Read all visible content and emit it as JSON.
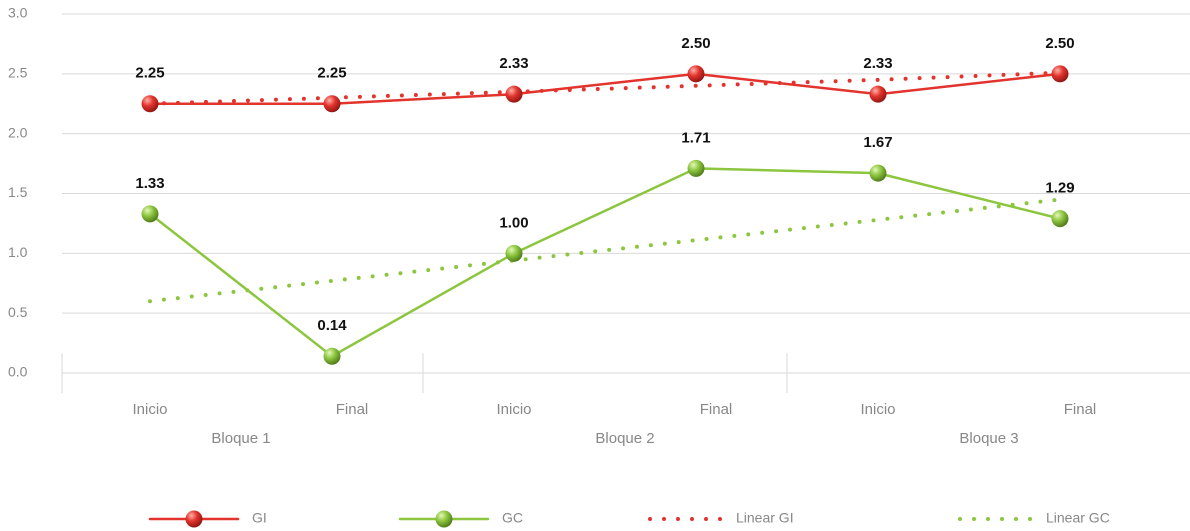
{
  "chart_data": {
    "type": "line",
    "categories": [
      "Inicio",
      "Final",
      "Inicio",
      "Final",
      "Inicio",
      "Final"
    ],
    "groups": [
      "Bloque 1",
      "Bloque 2",
      "Bloque 3"
    ],
    "ylim": [
      0,
      3
    ],
    "yticks": [
      {
        "value": 0,
        "label": "0.0"
      },
      0.5,
      {
        "value": 1,
        "label": "1.0"
      },
      1.5,
      {
        "value": 2,
        "label": "2.0"
      },
      2.5,
      {
        "value": 3,
        "label": "3.0"
      }
    ],
    "grid": true,
    "legend": "bottom",
    "series": [
      {
        "name": "GI",
        "color": "#e2332d",
        "style": "solid",
        "markers": true,
        "values": [
          2.25,
          2.25,
          2.33,
          2.5,
          2.33,
          2.5
        ],
        "value_labels": [
          "2.25",
          "2.25",
          "2.33",
          "2.50",
          "2.33",
          "2.50"
        ]
      },
      {
        "name": "GC",
        "color": "#8cc63f",
        "style": "solid",
        "markers": true,
        "values": [
          1.33,
          0.14,
          1.0,
          1.71,
          1.67,
          1.29
        ],
        "value_labels": [
          "1.33",
          "0.14",
          "1.00",
          "1.71",
          "1.67",
          "1.29"
        ]
      },
      {
        "name": "Linear GI",
        "color": "#e2332d",
        "style": "dotted",
        "markers": false,
        "values": [
          2.25,
          2.3,
          2.35,
          2.4,
          2.45,
          2.51
        ]
      },
      {
        "name": "Linear GC",
        "color": "#8cc63f",
        "style": "dotted",
        "markers": false,
        "values": [
          0.6,
          0.77,
          0.94,
          1.11,
          1.28,
          1.45
        ]
      }
    ]
  }
}
